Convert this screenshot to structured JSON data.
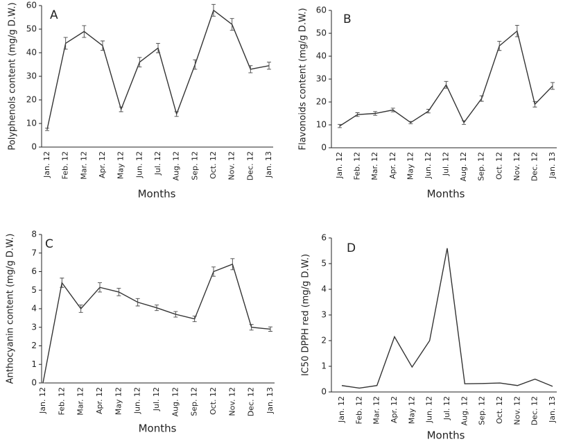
{
  "chart_data": [
    {
      "type": "line",
      "title": "A",
      "x_label": "Months",
      "y_label": "Polyphenols content (mg/g D.W.)",
      "categories": [
        "Jan. 12",
        "Feb. 12",
        "Mar. 12",
        "Apr. 12",
        "May 12",
        "Jun. 12",
        "Jul. 12",
        "Aug. 12",
        "Sep. 12",
        "Oct. 12",
        "Nov. 12",
        "Dec. 12",
        "Jan. 13"
      ],
      "values": [
        7.5,
        44,
        49,
        43,
        16,
        36,
        42,
        14,
        35,
        58,
        52,
        33,
        34.5
      ],
      "errors": [
        0.5,
        2.5,
        2.5,
        2,
        1,
        2,
        2,
        1,
        2,
        2.5,
        2.5,
        1.5,
        1.5
      ],
      "color": "#333333",
      "ylim": [
        0,
        60
      ],
      "yticks": [
        0,
        10,
        20,
        30,
        40,
        50,
        60
      ]
    },
    {
      "type": "line",
      "title": "B",
      "x_label": "Months",
      "y_label": "Flavonoids content (mg/g D.W.)",
      "categories": [
        "Jan. 12",
        "Feb. 12",
        "Mar. 12",
        "Apr. 12",
        "May 12",
        "Jun. 12",
        "Jul. 12",
        "Aug. 12",
        "Sep. 12",
        "Oct. 12",
        "Nov. 12",
        "Dec. 12",
        "Jan. 13"
      ],
      "values": [
        9.5,
        14.5,
        15,
        16.5,
        11,
        16,
        27.5,
        11,
        21.5,
        44.5,
        51,
        19,
        27
      ],
      "errors": [
        0.7,
        0.8,
        0.8,
        0.8,
        0.5,
        0.8,
        1.5,
        0.8,
        1.2,
        2,
        2.5,
        1.2,
        1.5
      ],
      "color": "#333333",
      "ylim": [
        0,
        60
      ],
      "yticks": [
        0,
        10,
        20,
        30,
        40,
        50,
        60
      ]
    },
    {
      "type": "line",
      "title": "C",
      "x_label": "Months",
      "y_label": "Anthocyanin content (mg/g D.W.)",
      "categories": [
        "Jan. 12",
        "Feb. 12",
        "Mar. 12",
        "Apr. 12",
        "May 12",
        "Jun. 12",
        "Jul. 12",
        "Aug. 12",
        "Sep. 12",
        "Oct. 12",
        "Nov. 12",
        "Dec. 12",
        "Jan. 13"
      ],
      "values": [
        0,
        5.4,
        4,
        5.15,
        4.9,
        4.35,
        4.05,
        3.7,
        3.45,
        6.0,
        6.4,
        3.0,
        2.9
      ],
      "errors": [
        0,
        0.25,
        0.2,
        0.25,
        0.2,
        0.2,
        0.15,
        0.15,
        0.15,
        0.25,
        0.3,
        0.15,
        0.12
      ],
      "color": "#333333",
      "ylim": [
        0,
        8
      ],
      "yticks": [
        0,
        1,
        2,
        3,
        4,
        5,
        6,
        7,
        8
      ]
    },
    {
      "type": "line",
      "title": "D",
      "x_label": "Months",
      "y_label": "IC50 DPPH red (mg/g D.W.)",
      "categories": [
        "Jan. 12",
        "Feb. 12",
        "Mar. 12",
        "Apr. 12",
        "May 12",
        "Jun. 12",
        "Jul. 12",
        "Aug. 12",
        "Sep. 12",
        "Oct. 12",
        "Nov. 12",
        "Dec. 12",
        "Jan. 13"
      ],
      "values": [
        0.25,
        0.15,
        0.25,
        2.15,
        0.97,
        2.0,
        5.6,
        0.32,
        0.33,
        0.35,
        0.25,
        0.5,
        0.22
      ],
      "color": "#333333",
      "ylim": [
        0,
        6
      ],
      "yticks": [
        0,
        1,
        2,
        3,
        4,
        5,
        6
      ]
    }
  ]
}
